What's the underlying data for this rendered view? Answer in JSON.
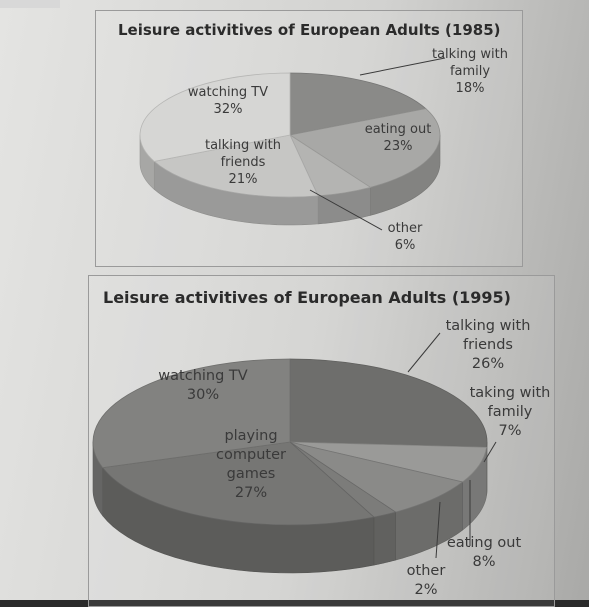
{
  "chart_data": [
    {
      "type": "pie",
      "title": "Leisure activitives of European Adults (1985)",
      "slices": [
        {
          "label": [
            "talking with",
            "family"
          ],
          "value": 18,
          "value_label": "18%",
          "color": "#8a8a88"
        },
        {
          "label": [
            "eating out"
          ],
          "value": 23,
          "value_label": "23%",
          "color": "#a8a8a6"
        },
        {
          "label": [
            "other"
          ],
          "value": 6,
          "value_label": "6%",
          "color": "#b4b4b2"
        },
        {
          "label": [
            "talking with",
            "friends"
          ],
          "value": 21,
          "value_label": "21%",
          "color": "#c6c6c4"
        },
        {
          "label": [
            "watching TV"
          ],
          "value": 32,
          "value_label": "32%",
          "color": "#d6d6d4"
        }
      ]
    },
    {
      "type": "pie",
      "title": "Leisure activitives of European Adults (1995)",
      "slices": [
        {
          "label": [
            "talking with",
            "friends"
          ],
          "value": 26,
          "value_label": "26%",
          "color": "#6e6e6c"
        },
        {
          "label": [
            "taking with",
            "family"
          ],
          "value": 7,
          "value_label": "7%",
          "color": "#9a9a98"
        },
        {
          "label": [
            "eating out"
          ],
          "value": 8,
          "value_label": "8%",
          "color": "#8a8a88"
        },
        {
          "label": [
            "other"
          ],
          "value": 2,
          "value_label": "2%",
          "color": "#7c7c7a"
        },
        {
          "label": [
            "playing",
            "computer",
            "games"
          ],
          "value": 27,
          "value_label": "27%",
          "color": "#767674"
        },
        {
          "label": [
            "watching TV"
          ],
          "value": 30,
          "value_label": "30%",
          "color": "#828280"
        }
      ]
    }
  ]
}
